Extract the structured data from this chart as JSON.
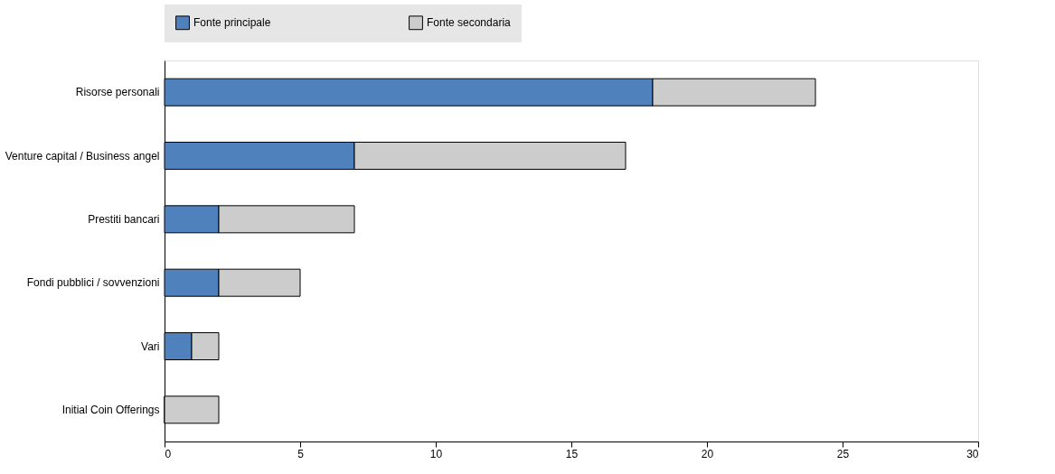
{
  "chart_data": {
    "type": "bar",
    "orientation": "horizontal",
    "stacked": true,
    "categories": [
      "Risorse personali",
      "Venture capital / Business angel",
      "Prestiti bancari",
      "Fondi pubblici / sovvenzioni",
      "Vari",
      "Initial Coin Offerings"
    ],
    "series": [
      {
        "name": "Fonte principale",
        "color": "#4f81bd",
        "values": [
          18,
          7,
          2,
          2,
          1,
          0
        ]
      },
      {
        "name": "Fonte secondaria",
        "color": "#cccccc",
        "values": [
          6,
          10,
          5,
          3,
          1,
          2
        ]
      }
    ],
    "xlim": [
      0,
      30
    ],
    "xticks": [
      0,
      5,
      10,
      15,
      20,
      25,
      30
    ],
    "grid": false,
    "legend": "top"
  }
}
